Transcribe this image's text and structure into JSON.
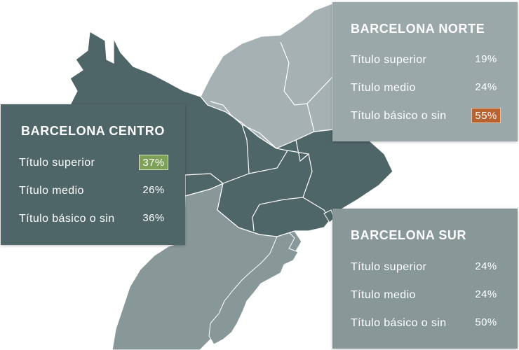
{
  "colors": {
    "centro_fill": "#4f6668",
    "norte_fill": "#a5b1b2",
    "sur_fill": "#889899",
    "highlight_green": "#7ea158",
    "highlight_orange": "#b8622f",
    "border": "#ffffff"
  },
  "panels": {
    "centro": {
      "title": "BARCELONA CENTRO",
      "rows": [
        {
          "label": "Título superior",
          "value": "37%"
        },
        {
          "label": "Título medio",
          "value": "26%"
        },
        {
          "label": "Título básico o sin",
          "value": "36%"
        }
      ]
    },
    "norte": {
      "title": "BARCELONA NORTE",
      "rows": [
        {
          "label": "Título superior",
          "value": "19%"
        },
        {
          "label": "Título medio",
          "value": "24%"
        },
        {
          "label": "Título básico o sin",
          "value": "55%"
        }
      ]
    },
    "sur": {
      "title": "BARCELONA SUR",
      "rows": [
        {
          "label": "Título superior",
          "value": "24%"
        },
        {
          "label": "Título medio",
          "value": "24%"
        },
        {
          "label": "Título básico o sin",
          "value": "50%"
        }
      ]
    }
  }
}
